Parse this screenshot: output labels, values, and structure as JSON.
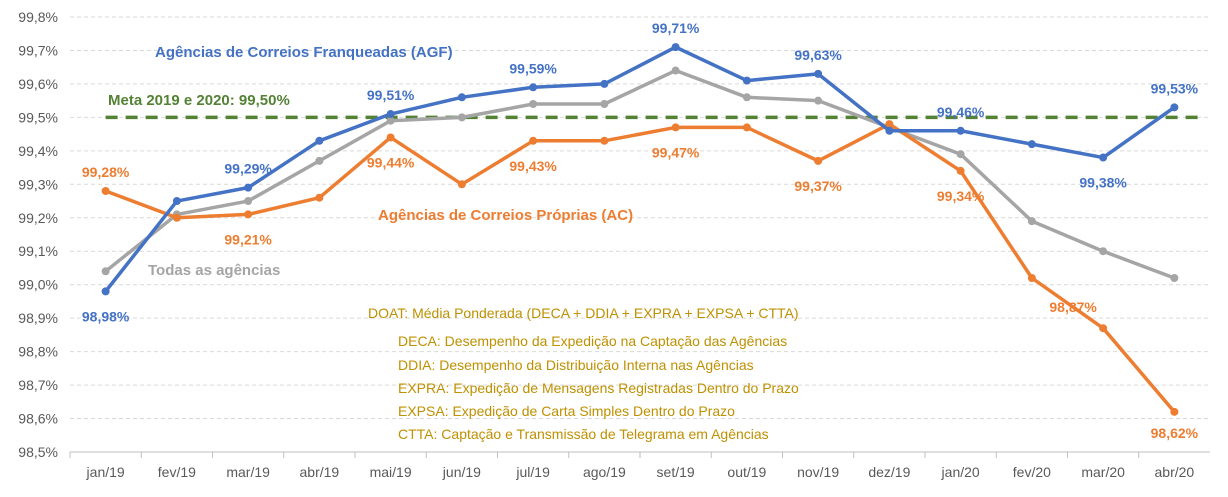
{
  "chart_data": {
    "type": "line",
    "title": "",
    "xlabel": "",
    "ylabel": "",
    "categories": [
      "jan/19",
      "fev/19",
      "mar/19",
      "abr/19",
      "mai/19",
      "jun/19",
      "jul/19",
      "ago/19",
      "set/19",
      "out/19",
      "nov/19",
      "dez/19",
      "jan/20",
      "fev/20",
      "mar/20",
      "abr/20"
    ],
    "yticks": [
      "98,5%",
      "98,6%",
      "98,7%",
      "98,8%",
      "98,9%",
      "99,0%",
      "99,1%",
      "99,2%",
      "99,3%",
      "99,4%",
      "99,5%",
      "99,6%",
      "99,7%",
      "99,8%"
    ],
    "ylim": [
      98.5,
      99.8
    ],
    "grid": true,
    "series": [
      {
        "name": "Agências de Correios Franqueadas (AGF)",
        "color": "#4472C4",
        "values": [
          98.98,
          99.25,
          99.29,
          99.43,
          99.51,
          99.56,
          99.59,
          99.6,
          99.71,
          99.61,
          99.63,
          99.46,
          99.46,
          99.42,
          99.38,
          99.53
        ],
        "labels": {
          "0": "98,98%",
          "2": "99,29%",
          "4": "99,51%",
          "6": "99,59%",
          "8": "99,71%",
          "10": "99,63%",
          "12": "99,46%",
          "14": "99,38%",
          "15": "99,53%"
        }
      },
      {
        "name": "Agências de Correios Próprias (AC)",
        "color": "#ED7D31",
        "values": [
          99.28,
          99.2,
          99.21,
          99.26,
          99.44,
          99.3,
          99.43,
          99.43,
          99.47,
          99.47,
          99.37,
          99.48,
          99.34,
          99.02,
          98.87,
          98.62
        ],
        "labels": {
          "0": "99,28%",
          "2": "99,21%",
          "4": "99,44%",
          "6": "99,43%",
          "8": "99,47%",
          "10": "99,37%",
          "12": "99,34%",
          "14": "98,87%",
          "15": "98,62%"
        }
      },
      {
        "name": "Todas as agências",
        "color": "#A5A5A5",
        "values": [
          99.04,
          99.21,
          99.25,
          99.37,
          99.49,
          99.5,
          99.54,
          99.54,
          99.64,
          99.56,
          99.55,
          99.47,
          99.39,
          99.19,
          99.1,
          99.02
        ],
        "labels": {}
      }
    ],
    "target": {
      "label": "Meta 2019 e 2020: 99,50%",
      "value": 99.5,
      "color": "#548235"
    },
    "annotations": [
      "DOAT: Média Ponderada (DECA + DDIA + EXPRA + EXPSA +  CTTA)",
      "DECA: Desempenho da Expedição na Captação das Agências",
      "DDIA: Desempenho da Distribuição Interna nas Agências",
      "EXPRA: Expedição de Mensagens  Registradas  Dentro do Prazo",
      "EXPSA:  Expedição de Carta Simples Dentro do Prazo",
      "CTTA:  Captação e Transmissão de Telegrama em Agências"
    ]
  }
}
